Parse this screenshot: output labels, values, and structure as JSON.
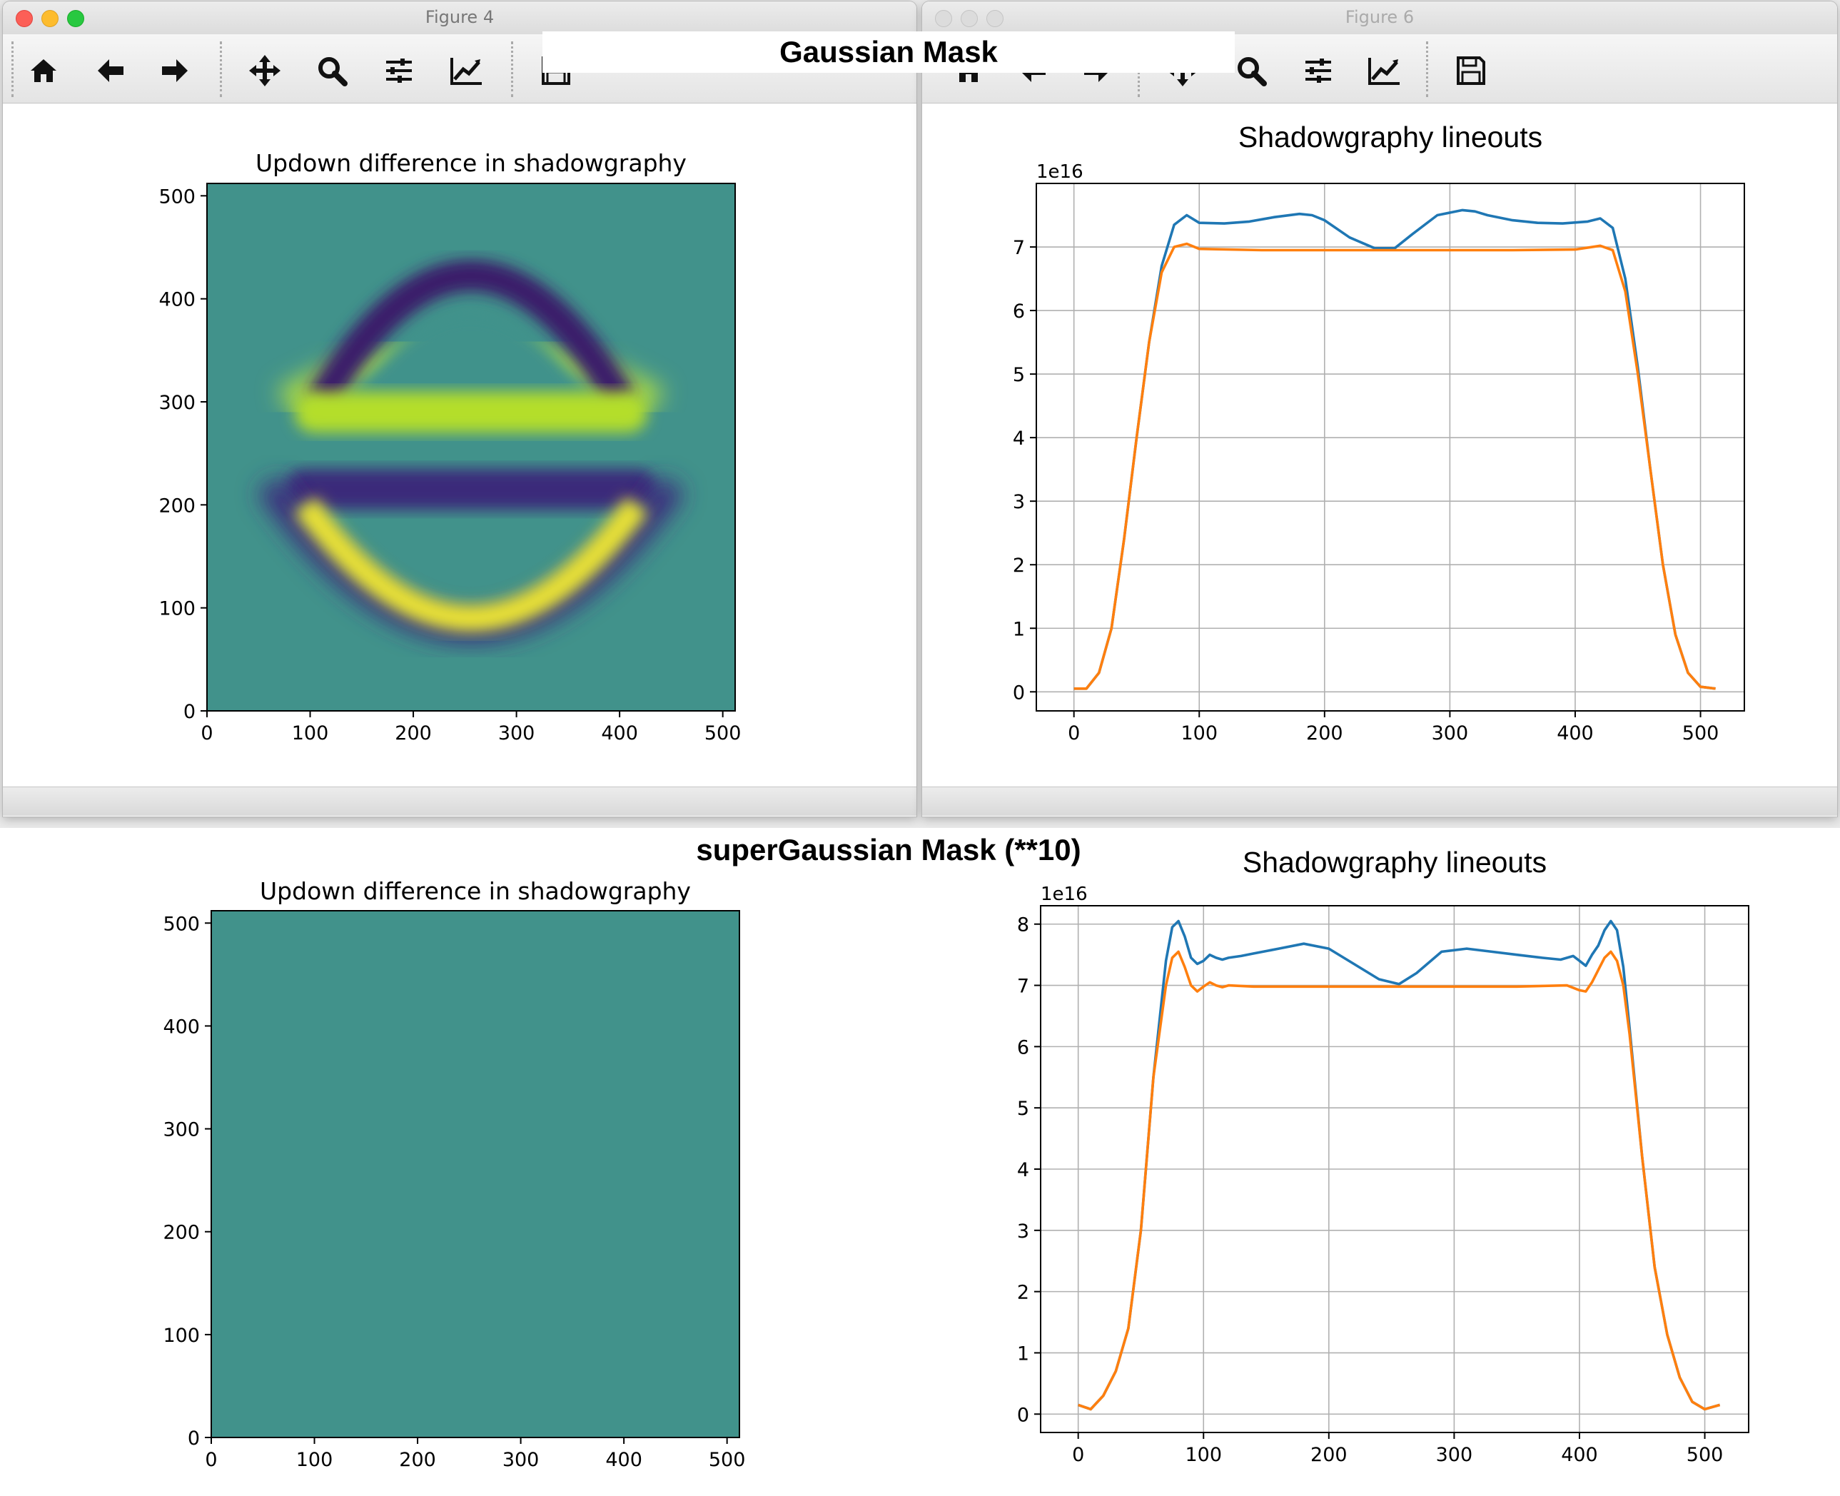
{
  "annotations": {
    "gaussian_label": "Gaussian Mask",
    "supergaussian_label": "superGaussian Mask (**10)"
  },
  "windows": {
    "figure4": {
      "title": "Figure 4"
    },
    "figure6": {
      "title": "Figure 6"
    }
  },
  "toolbar": {
    "icons": [
      "home-icon",
      "back-arrow-icon",
      "forward-arrow-icon",
      "pan-icon",
      "zoom-icon",
      "configure-subplots-icon",
      "edit-axis-icon",
      "save-icon"
    ]
  },
  "colors": {
    "series_1": "#1f77b4",
    "series_2": "#ff7f0e",
    "teal_field": "#41928b"
  },
  "chart_data": [
    {
      "id": "top-left",
      "type": "heatmap",
      "title": "Updown difference in shadowgraphy",
      "colormap": "viridis",
      "xlim": [
        0,
        512
      ],
      "ylim": [
        0,
        512
      ],
      "xticks": [
        0,
        100,
        200,
        300,
        400,
        500
      ],
      "yticks": [
        0,
        100,
        200,
        300,
        400,
        500
      ],
      "description": "two horizontal bands and two arcs: bright band near y=290, dark band near y=215, dark arc top peaking near y=435, bright arc bottom near y=80 with dark outer ring near y=45"
    },
    {
      "id": "top-right",
      "type": "line",
      "title": "Shadowgraphy lineouts",
      "offset_text": "1e16",
      "xlim": [
        -30,
        535
      ],
      "ylim": [
        -0.3,
        8.0
      ],
      "xticks": [
        0,
        100,
        200,
        300,
        400,
        500
      ],
      "yticks": [
        0,
        1,
        2,
        3,
        4,
        5,
        6,
        7
      ],
      "grid": true,
      "series": [
        {
          "x": [
            0,
            10,
            20,
            30,
            40,
            50,
            60,
            70,
            80,
            90,
            100,
            120,
            140,
            160,
            180,
            190,
            200,
            220,
            240,
            256,
            270,
            290,
            310,
            320,
            330,
            350,
            370,
            390,
            410,
            420,
            430,
            440,
            450,
            460,
            470,
            480,
            490,
            500,
            512
          ],
          "y": [
            0.05,
            0.05,
            0.3,
            1.0,
            2.4,
            4.0,
            5.5,
            6.7,
            7.35,
            7.5,
            7.38,
            7.37,
            7.4,
            7.47,
            7.52,
            7.5,
            7.42,
            7.15,
            6.98,
            6.98,
            7.2,
            7.5,
            7.58,
            7.56,
            7.5,
            7.42,
            7.38,
            7.37,
            7.4,
            7.45,
            7.3,
            6.5,
            5.1,
            3.5,
            2.0,
            0.9,
            0.3,
            0.08,
            0.05
          ]
        },
        {
          "x": [
            0,
            10,
            20,
            30,
            40,
            50,
            60,
            70,
            80,
            90,
            100,
            150,
            200,
            256,
            300,
            350,
            400,
            420,
            430,
            440,
            450,
            460,
            470,
            480,
            490,
            500,
            512
          ],
          "y": [
            0.05,
            0.05,
            0.3,
            1.0,
            2.4,
            4.0,
            5.5,
            6.6,
            7.0,
            7.05,
            6.97,
            6.95,
            6.95,
            6.95,
            6.95,
            6.95,
            6.96,
            7.02,
            6.95,
            6.3,
            5.0,
            3.5,
            2.0,
            0.9,
            0.3,
            0.08,
            0.05
          ]
        }
      ]
    },
    {
      "id": "bottom-left",
      "type": "heatmap",
      "title": "Updown difference in shadowgraphy",
      "colormap": "viridis",
      "xlim": [
        0,
        512
      ],
      "ylim": [
        0,
        512
      ],
      "xticks": [
        0,
        100,
        200,
        300,
        400,
        500
      ],
      "yticks": [
        0,
        100,
        200,
        300,
        400,
        500
      ],
      "description": "uniform field"
    },
    {
      "id": "bottom-right",
      "type": "line",
      "title": "Shadowgraphy lineouts",
      "offset_text": "1e16",
      "xlim": [
        -30,
        535
      ],
      "ylim": [
        -0.3,
        8.3
      ],
      "xticks": [
        0,
        100,
        200,
        300,
        400,
        500
      ],
      "yticks": [
        0,
        1,
        2,
        3,
        4,
        5,
        6,
        7,
        8
      ],
      "grid": true,
      "series": [
        {
          "x": [
            0,
            10,
            20,
            30,
            40,
            50,
            60,
            70,
            75,
            80,
            85,
            90,
            95,
            100,
            105,
            110,
            115,
            120,
            130,
            140,
            160,
            180,
            200,
            220,
            240,
            256,
            270,
            290,
            310,
            330,
            350,
            370,
            385,
            395,
            400,
            405,
            410,
            415,
            420,
            425,
            430,
            435,
            440,
            450,
            460,
            470,
            480,
            490,
            500,
            512
          ],
          "y": [
            0.15,
            0.08,
            0.3,
            0.7,
            1.4,
            3.0,
            5.5,
            7.4,
            7.95,
            8.05,
            7.8,
            7.45,
            7.35,
            7.4,
            7.5,
            7.45,
            7.42,
            7.45,
            7.48,
            7.52,
            7.6,
            7.68,
            7.6,
            7.35,
            7.1,
            7.02,
            7.2,
            7.55,
            7.6,
            7.55,
            7.5,
            7.45,
            7.42,
            7.48,
            7.4,
            7.32,
            7.5,
            7.65,
            7.9,
            8.05,
            7.9,
            7.3,
            6.3,
            4.2,
            2.4,
            1.3,
            0.6,
            0.2,
            0.08,
            0.15
          ]
        },
        {
          "x": [
            0,
            10,
            20,
            30,
            40,
            50,
            60,
            70,
            75,
            80,
            85,
            90,
            95,
            100,
            105,
            110,
            115,
            120,
            140,
            200,
            256,
            300,
            350,
            390,
            400,
            405,
            410,
            415,
            420,
            425,
            430,
            435,
            440,
            450,
            460,
            470,
            480,
            490,
            500,
            512
          ],
          "y": [
            0.15,
            0.08,
            0.3,
            0.7,
            1.4,
            3.0,
            5.5,
            7.0,
            7.45,
            7.55,
            7.3,
            7.0,
            6.9,
            6.98,
            7.05,
            7.0,
            6.97,
            7.0,
            6.98,
            6.98,
            6.98,
            6.98,
            6.98,
            7.0,
            6.92,
            6.9,
            7.05,
            7.25,
            7.45,
            7.55,
            7.4,
            7.0,
            6.2,
            4.2,
            2.4,
            1.3,
            0.6,
            0.2,
            0.08,
            0.15
          ]
        }
      ]
    }
  ]
}
